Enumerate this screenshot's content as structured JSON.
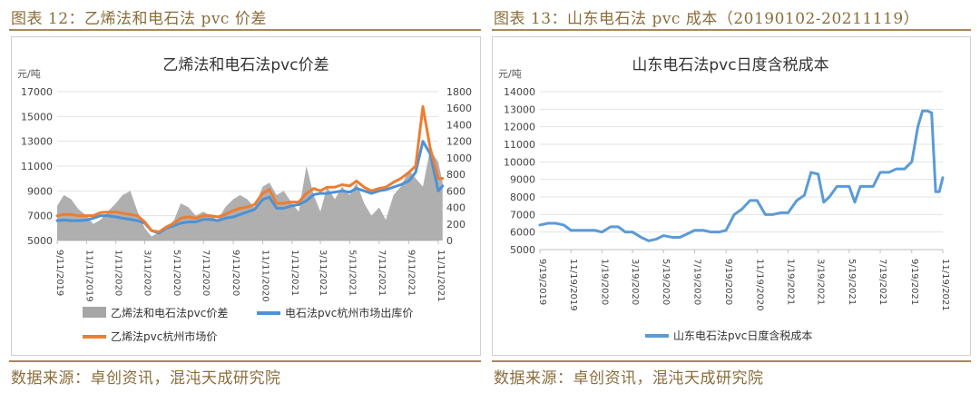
{
  "left": {
    "caption": "图表 12：乙烯法和电石法 pvc 价差",
    "source": "数据来源：卓创资讯，混沌天成研究院"
  },
  "right": {
    "caption": "图表 13：山东电石法 pvc 成本（20190102-20211119）",
    "source": "数据来源：卓创资讯，混沌天成研究院"
  },
  "chart_data": [
    {
      "type": "line",
      "title": "乙烯法和电石法pvc价差",
      "ylabel": "元/吨",
      "ylim": [
        5000,
        17000
      ],
      "y_ticks": [
        "5000",
        "7000",
        "9000",
        "11000",
        "13000",
        "15000",
        "17000"
      ],
      "y2lim": [
        0,
        1800
      ],
      "y2_ticks": [
        "0",
        "200",
        "400",
        "600",
        "800",
        "1000",
        "1200",
        "1400",
        "1600",
        "1800"
      ],
      "x_ticks": [
        "9/11/2019",
        "11/11/2019",
        "1/11/2020",
        "3/11/2020",
        "5/11/2020",
        "7/11/2020",
        "9/11/2020",
        "11/11/2020",
        "1/11/2021",
        "3/11/2021",
        "5/11/2021",
        "7/11/2021",
        "9/11/2021",
        "11/11/2021"
      ],
      "series": [
        {
          "name": "乙烯法和电石法pvc价差",
          "kind": "area",
          "axis": "right",
          "color": "#a6a6a6",
          "x": [
            "2019-09-11",
            "2019-09-25",
            "2019-10-10",
            "2019-10-25",
            "2019-11-11",
            "2019-11-25",
            "2019-12-10",
            "2019-12-25",
            "2020-01-11",
            "2020-01-25",
            "2020-02-10",
            "2020-02-25",
            "2020-03-11",
            "2020-03-25",
            "2020-04-10",
            "2020-04-25",
            "2020-05-11",
            "2020-05-25",
            "2020-06-10",
            "2020-06-25",
            "2020-07-11",
            "2020-07-25",
            "2020-08-10",
            "2020-08-25",
            "2020-09-11",
            "2020-09-25",
            "2020-10-10",
            "2020-10-25",
            "2020-11-11",
            "2020-11-25",
            "2020-12-10",
            "2020-12-25",
            "2021-01-11",
            "2021-01-25",
            "2021-02-10",
            "2021-02-25",
            "2021-03-11",
            "2021-03-25",
            "2021-04-10",
            "2021-04-25",
            "2021-05-11",
            "2021-05-25",
            "2021-06-10",
            "2021-06-25",
            "2021-07-11",
            "2021-07-25",
            "2021-08-10",
            "2021-08-25",
            "2021-09-11",
            "2021-09-25",
            "2021-10-10",
            "2021-10-25",
            "2021-11-11",
            "2021-11-20"
          ],
          "values": [
            420,
            550,
            500,
            380,
            300,
            200,
            250,
            350,
            450,
            550,
            600,
            350,
            150,
            50,
            100,
            150,
            250,
            450,
            400,
            300,
            350,
            300,
            250,
            400,
            500,
            550,
            500,
            400,
            650,
            700,
            550,
            600,
            450,
            350,
            900,
            550,
            350,
            650,
            500,
            650,
            550,
            700,
            450,
            300,
            400,
            250,
            550,
            650,
            850,
            750,
            650,
            1100,
            950,
            700
          ]
        },
        {
          "name": "电石法pvc杭州市场出库价",
          "kind": "line",
          "axis": "left",
          "color": "#4e91d5",
          "x": [
            "2019-09-11",
            "2019-09-25",
            "2019-10-10",
            "2019-10-25",
            "2019-11-11",
            "2019-11-25",
            "2019-12-10",
            "2019-12-25",
            "2020-01-11",
            "2020-01-25",
            "2020-02-10",
            "2020-02-25",
            "2020-03-11",
            "2020-03-25",
            "2020-04-10",
            "2020-04-25",
            "2020-05-11",
            "2020-05-25",
            "2020-06-10",
            "2020-06-25",
            "2020-07-11",
            "2020-07-25",
            "2020-08-10",
            "2020-08-25",
            "2020-09-11",
            "2020-09-25",
            "2020-10-10",
            "2020-10-25",
            "2020-11-11",
            "2020-11-25",
            "2020-12-10",
            "2020-12-25",
            "2021-01-11",
            "2021-01-25",
            "2021-02-10",
            "2021-02-25",
            "2021-03-11",
            "2021-03-25",
            "2021-04-10",
            "2021-04-25",
            "2021-05-11",
            "2021-05-25",
            "2021-06-10",
            "2021-06-25",
            "2021-07-11",
            "2021-07-25",
            "2021-08-10",
            "2021-08-25",
            "2021-09-11",
            "2021-09-25",
            "2021-10-10",
            "2021-10-25",
            "2021-11-11",
            "2021-11-20"
          ],
          "values": [
            6600,
            6650,
            6600,
            6600,
            6650,
            6800,
            7000,
            7000,
            6900,
            6800,
            6700,
            6600,
            6400,
            5800,
            5600,
            6000,
            6200,
            6400,
            6500,
            6500,
            6700,
            6700,
            6600,
            6800,
            6900,
            7100,
            7300,
            7500,
            8300,
            8500,
            7600,
            7600,
            7800,
            7900,
            8200,
            8700,
            8800,
            8800,
            8900,
            9000,
            8900,
            9200,
            9000,
            8800,
            9000,
            9100,
            9300,
            9500,
            9800,
            10500,
            13000,
            12000,
            9000,
            9400
          ]
        },
        {
          "name": "乙烯法pvc杭州市场价",
          "kind": "line",
          "axis": "left",
          "color": "#ed7d31",
          "x": [
            "2019-09-11",
            "2019-09-25",
            "2019-10-10",
            "2019-10-25",
            "2019-11-11",
            "2019-11-25",
            "2019-12-10",
            "2019-12-25",
            "2020-01-11",
            "2020-01-25",
            "2020-02-10",
            "2020-02-25",
            "2020-03-11",
            "2020-03-25",
            "2020-04-10",
            "2020-04-25",
            "2020-05-11",
            "2020-05-25",
            "2020-06-10",
            "2020-06-25",
            "2020-07-11",
            "2020-07-25",
            "2020-08-10",
            "2020-08-25",
            "2020-09-11",
            "2020-09-25",
            "2020-10-10",
            "2020-10-25",
            "2020-11-11",
            "2020-11-25",
            "2020-12-10",
            "2020-12-25",
            "2021-01-11",
            "2021-01-25",
            "2021-02-10",
            "2021-02-25",
            "2021-03-11",
            "2021-03-25",
            "2021-04-10",
            "2021-04-25",
            "2021-05-11",
            "2021-05-25",
            "2021-06-10",
            "2021-06-25",
            "2021-07-11",
            "2021-07-25",
            "2021-08-10",
            "2021-08-25",
            "2021-09-11",
            "2021-09-25",
            "2021-10-10",
            "2021-10-25",
            "2021-11-11",
            "2021-11-20"
          ],
          "values": [
            7000,
            7100,
            7100,
            7000,
            7000,
            7000,
            7250,
            7300,
            7300,
            7200,
            7100,
            7000,
            6500,
            5800,
            5700,
            6100,
            6400,
            6800,
            6900,
            6800,
            7000,
            7000,
            6900,
            7100,
            7400,
            7600,
            7700,
            7900,
            8800,
            9100,
            8000,
            8000,
            8100,
            8100,
            8800,
            9200,
            9000,
            9300,
            9300,
            9500,
            9400,
            9800,
            9300,
            9000,
            9200,
            9300,
            9700,
            10000,
            10500,
            11000,
            15800,
            12500,
            10000,
            10000
          ]
        }
      ]
    },
    {
      "type": "line",
      "title": "山东电石法pvc日度含税成本",
      "ylabel": "元/吨",
      "ylim": [
        5000,
        14000
      ],
      "y_ticks": [
        "5000",
        "6000",
        "7000",
        "8000",
        "9000",
        "10000",
        "11000",
        "12000",
        "13000",
        "14000"
      ],
      "x_ticks": [
        "9/19/2019",
        "11/19/2019",
        "1/19/2020",
        "3/19/2020",
        "5/19/2020",
        "7/19/2020",
        "9/19/2020",
        "11/19/2020",
        "1/19/2021",
        "3/19/2021",
        "5/19/2021",
        "7/19/2021",
        "9/19/2021",
        "11/19/2021"
      ],
      "series": [
        {
          "name": "山东电石法pvc日度含税成本",
          "kind": "line",
          "color": "#5b9bd5",
          "x": [
            "2019-09-19",
            "2019-10-05",
            "2019-10-20",
            "2019-11-05",
            "2019-11-19",
            "2019-12-05",
            "2019-12-20",
            "2020-01-05",
            "2020-01-19",
            "2020-02-05",
            "2020-02-20",
            "2020-03-05",
            "2020-03-19",
            "2020-04-05",
            "2020-04-20",
            "2020-05-05",
            "2020-05-19",
            "2020-06-05",
            "2020-06-20",
            "2020-07-05",
            "2020-07-19",
            "2020-08-05",
            "2020-08-20",
            "2020-09-05",
            "2020-09-19",
            "2020-10-05",
            "2020-10-20",
            "2020-11-05",
            "2020-11-19",
            "2020-12-05",
            "2020-12-20",
            "2021-01-05",
            "2021-01-19",
            "2021-02-05",
            "2021-02-20",
            "2021-03-05",
            "2021-03-19",
            "2021-03-30",
            "2021-04-10",
            "2021-04-25",
            "2021-05-05",
            "2021-05-19",
            "2021-05-30",
            "2021-06-10",
            "2021-06-25",
            "2021-07-05",
            "2021-07-19",
            "2021-08-05",
            "2021-08-20",
            "2021-09-05",
            "2021-09-19",
            "2021-10-01",
            "2021-10-10",
            "2021-10-20",
            "2021-10-28",
            "2021-11-05",
            "2021-11-12",
            "2021-11-19"
          ],
          "values": [
            6400,
            6500,
            6500,
            6400,
            6100,
            6100,
            6100,
            6100,
            6000,
            6300,
            6300,
            6000,
            6000,
            5700,
            5500,
            5600,
            5800,
            5700,
            5700,
            5900,
            6100,
            6100,
            6000,
            6000,
            6100,
            7000,
            7300,
            7800,
            7800,
            7000,
            7000,
            7100,
            7100,
            7800,
            8100,
            9400,
            9300,
            7700,
            8000,
            8600,
            8600,
            8600,
            7700,
            8600,
            8600,
            8600,
            9400,
            9400,
            9600,
            9600,
            10000,
            12000,
            12900,
            12900,
            12800,
            8300,
            8300,
            9100
          ]
        }
      ]
    }
  ]
}
